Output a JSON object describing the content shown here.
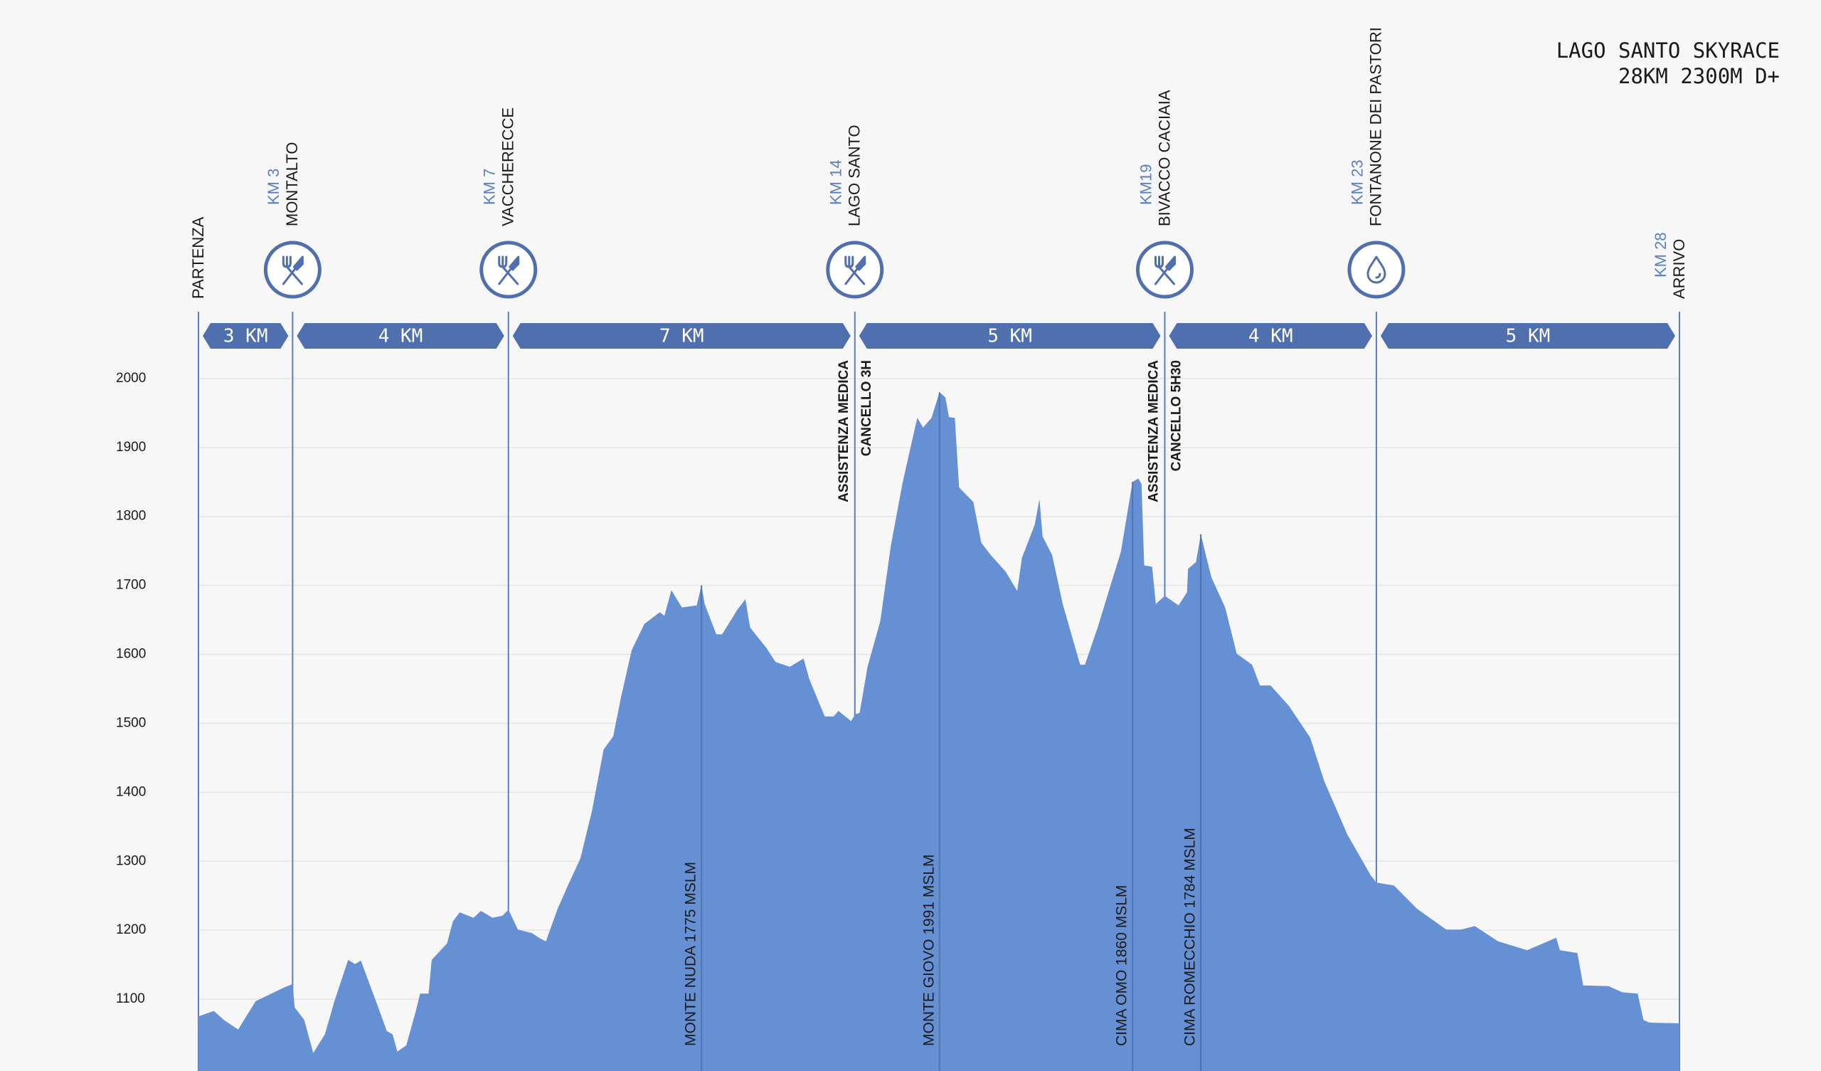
{
  "chart_data": {
    "type": "area",
    "title": "LAGO SANTO SKYRACE",
    "subtitle": "28KM 2300M D+",
    "color": "#6690d4",
    "xlim": [
      0,
      28
    ],
    "ylim": [
      1000,
      2100
    ],
    "yticks": [
      1100,
      1200,
      1300,
      1400,
      1500,
      1600,
      1700,
      1800,
      1900,
      2000
    ],
    "grid": true,
    "x": [
      0,
      0.29,
      0.48,
      0.75,
      1.08,
      1.62,
      1.78,
      1.82,
      2.0,
      2.17,
      2.39,
      2.57,
      2.83,
      2.96,
      3.07,
      3.38,
      3.56,
      3.67,
      3.76,
      3.93,
      4.11,
      4.19,
      4.35,
      4.41,
      4.7,
      4.81,
      4.94,
      5.2,
      5.34,
      5.56,
      5.75,
      5.86,
      6.04,
      6.3,
      6.46,
      6.57,
      6.79,
      7.01,
      7.22,
      7.44,
      7.66,
      7.84,
      7.99,
      8.19,
      8.43,
      8.72,
      8.81,
      8.94,
      9.14,
      9.42,
      9.51,
      9.57,
      9.79,
      9.9,
      10.19,
      10.34,
      10.43,
      10.74,
      10.91,
      11.18,
      11.44,
      11.55,
      11.84,
      12.01,
      12.1,
      12.34,
      12.41,
      12.5,
      12.65,
      12.89,
      13.09,
      13.31,
      13.59,
      13.7,
      13.86,
      14.01,
      14.12,
      14.19,
      14.3,
      14.38,
      14.65,
      14.8,
      14.98,
      15.26,
      15.48,
      15.57,
      15.81,
      15.9,
      15.96,
      16.14,
      16.34,
      16.67,
      16.76,
      17.0,
      17.44,
      17.66,
      17.77,
      17.83,
      17.88,
      18.03,
      18.1,
      18.27,
      18.53,
      18.69,
      18.71,
      18.86,
      18.95,
      19.15,
      19.41,
      19.63,
      19.92,
      20.07,
      20.27,
      20.62,
      21.02,
      21.28,
      21.72,
      22.16,
      22.27,
      22.6,
      23.04,
      23.59,
      23.87,
      24.13,
      24.57,
      25.12,
      25.67,
      25.74,
      26.07,
      26.18,
      26.66,
      26.92,
      27.21,
      27.32,
      27.43,
      28.0
    ],
    "values": [
      1075,
      1083,
      1070,
      1056,
      1097,
      1117,
      1122,
      1088,
      1070,
      1022,
      1049,
      1097,
      1157,
      1151,
      1156,
      1092,
      1054,
      1049,
      1024,
      1033,
      1083,
      1108,
      1108,
      1157,
      1181,
      1213,
      1226,
      1218,
      1228,
      1218,
      1221,
      1230,
      1201,
      1196,
      1188,
      1184,
      1231,
      1269,
      1304,
      1373,
      1462,
      1481,
      1538,
      1606,
      1644,
      1661,
      1656,
      1693,
      1668,
      1671,
      1700,
      1673,
      1629,
      1629,
      1665,
      1680,
      1639,
      1609,
      1589,
      1582,
      1594,
      1564,
      1510,
      1510,
      1518,
      1503,
      1513,
      1515,
      1582,
      1648,
      1757,
      1848,
      1943,
      1929,
      1943,
      1980,
      1973,
      1944,
      1943,
      1842,
      1821,
      1762,
      1744,
      1720,
      1692,
      1740,
      1788,
      1825,
      1771,
      1744,
      1673,
      1585,
      1585,
      1639,
      1749,
      1850,
      1855,
      1847,
      1729,
      1727,
      1673,
      1685,
      1671,
      1690,
      1724,
      1734,
      1774,
      1712,
      1668,
      1601,
      1585,
      1555,
      1555,
      1525,
      1479,
      1417,
      1339,
      1280,
      1269,
      1265,
      1231,
      1201,
      1201,
      1206,
      1184,
      1171,
      1189,
      1171,
      1167,
      1120,
      1119,
      1110,
      1108,
      1070,
      1066,
      1065
    ],
    "waypoints": [
      {
        "label": "PARTENZA",
        "x": 0
      },
      {
        "label": "MONTALTO",
        "km_label": "KM 3",
        "x": 1.78,
        "icon": "food"
      },
      {
        "label": "VACCHERECCE",
        "km_label": "KM 7",
        "x": 5.86,
        "icon": "food"
      },
      {
        "label": "LAGO SANTO",
        "km_label": "KM 14",
        "x": 12.41,
        "icon": "food",
        "notes": [
          "ASSISTENZA MEDICA",
          "CANCELLO 3H"
        ]
      },
      {
        "label": "BIVACCO CACIAIA",
        "km_label": "KM19",
        "x": 18.27,
        "icon": "food",
        "notes": [
          "ASSISTENZA MEDICA",
          "CANCELLO 5H30"
        ]
      },
      {
        "label": "FONTANONE DEI PASTORI",
        "km_label": "KM 23",
        "x": 22.27,
        "icon": "water"
      },
      {
        "label": "ARRIVO",
        "km_label": "KM 28",
        "x": 28
      }
    ],
    "segments": [
      "3 KM",
      "4 KM",
      "7 KM",
      "5 KM",
      "4 KM",
      "5 KM"
    ],
    "peaks": [
      {
        "label": "MONTE NUDA 1775 MSLM",
        "x": 9.51
      },
      {
        "label": "MONTE GIOVO 1991 MSLM",
        "x": 14.01
      },
      {
        "label": "CIMA OMO 1860 MSLM",
        "x": 17.66
      },
      {
        "label": "CIMA ROMECCHIO 1784 MSLM",
        "x": 18.95
      }
    ]
  }
}
